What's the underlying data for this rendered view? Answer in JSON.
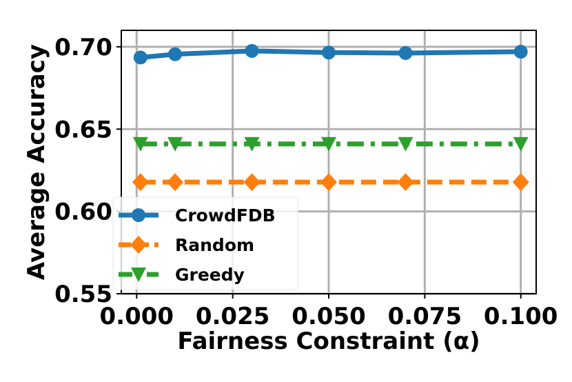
{
  "chart_data": {
    "type": "line",
    "title": "",
    "xlabel": "Fairness Constraint (α)",
    "ylabel": "Average Accuracy",
    "x": [
      0.001,
      0.01,
      0.03,
      0.05,
      0.07,
      0.1
    ],
    "xlim": [
      -0.004,
      0.104
    ],
    "ylim": [
      0.55,
      0.71
    ],
    "xticks": [
      0.0,
      0.025,
      0.05,
      0.075,
      0.1
    ],
    "xtick_labels": [
      "0.000",
      "0.025",
      "0.050",
      "0.075",
      "0.100"
    ],
    "yticks": [
      0.55,
      0.6,
      0.65,
      0.7
    ],
    "ytick_labels": [
      "0.55",
      "0.60",
      "0.65",
      "0.70"
    ],
    "grid": true,
    "legend_position": "lower-left",
    "series": [
      {
        "name": "CrowdFDB",
        "values": [
          0.6935,
          0.6955,
          0.6975,
          0.6965,
          0.6962,
          0.697
        ],
        "color": "#1f77b4",
        "marker": "circle",
        "linestyle": "solid"
      },
      {
        "name": "Random",
        "values": [
          0.6178,
          0.6178,
          0.6178,
          0.6178,
          0.6178,
          0.6178
        ],
        "color": "#ff7f0e",
        "marker": "diamond",
        "linestyle": "dashed"
      },
      {
        "name": "Greedy",
        "values": [
          0.641,
          0.641,
          0.641,
          0.641,
          0.641,
          0.641
        ],
        "color": "#2ca02c",
        "marker": "triangle-down",
        "linestyle": "dashdot"
      }
    ]
  }
}
